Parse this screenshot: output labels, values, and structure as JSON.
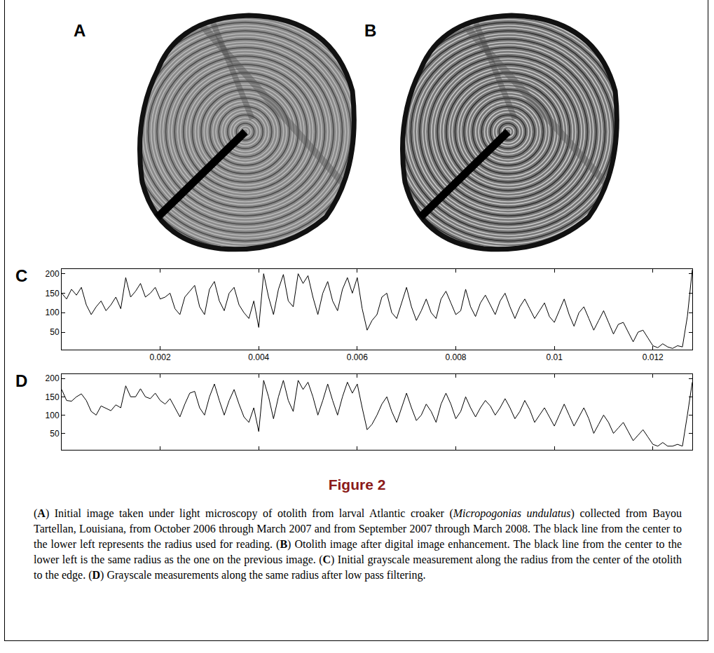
{
  "images": [
    {
      "panel_label": "A"
    },
    {
      "panel_label": "B"
    }
  ],
  "chart_data": [
    {
      "type": "line",
      "panel_label": "C",
      "color": "#000000",
      "grid": false,
      "xlim": [
        0,
        0.0128
      ],
      "xticks": [
        0.002,
        0.004,
        0.006,
        0.008,
        0.01,
        0.012
      ],
      "ylim": [
        5,
        212
      ],
      "yticks": [
        50,
        100,
        150,
        200
      ],
      "x": [
        0,
        0.0001,
        0.0002,
        0.0003,
        0.0004,
        0.0005,
        0.0006,
        0.0007,
        0.0008,
        0.0009,
        0.001,
        0.0011,
        0.0012,
        0.0013,
        0.0014,
        0.0015,
        0.0016,
        0.0017,
        0.0018,
        0.0019,
        0.002,
        0.0021,
        0.0022,
        0.0023,
        0.0024,
        0.0025,
        0.0026,
        0.0027,
        0.0028,
        0.0029,
        0.003,
        0.0031,
        0.0032,
        0.0033,
        0.0034,
        0.0035,
        0.0036,
        0.0037,
        0.0038,
        0.0039,
        0.004,
        0.0041,
        0.0042,
        0.0043,
        0.0044,
        0.0045,
        0.0046,
        0.0047,
        0.0048,
        0.0049,
        0.005,
        0.0051,
        0.0052,
        0.0053,
        0.0054,
        0.0055,
        0.0056,
        0.0057,
        0.0058,
        0.0059,
        0.006,
        0.0061,
        0.0062,
        0.0063,
        0.0064,
        0.0065,
        0.0066,
        0.0067,
        0.0068,
        0.0069,
        0.007,
        0.0071,
        0.0072,
        0.0073,
        0.0074,
        0.0075,
        0.0076,
        0.0077,
        0.0078,
        0.0079,
        0.008,
        0.0081,
        0.0082,
        0.0083,
        0.0084,
        0.0085,
        0.0086,
        0.0087,
        0.0088,
        0.0089,
        0.009,
        0.0091,
        0.0092,
        0.0093,
        0.0094,
        0.0095,
        0.0096,
        0.0097,
        0.0098,
        0.0099,
        0.01,
        0.0101,
        0.0102,
        0.0103,
        0.0104,
        0.0105,
        0.0106,
        0.0107,
        0.0108,
        0.0109,
        0.011,
        0.0111,
        0.0112,
        0.0113,
        0.0114,
        0.0115,
        0.0116,
        0.0117,
        0.0118,
        0.0119,
        0.012,
        0.0121,
        0.0122,
        0.0123,
        0.0124,
        0.0125,
        0.0126,
        0.0127,
        0.0128
      ],
      "values": [
        150,
        135,
        160,
        145,
        165,
        120,
        95,
        115,
        130,
        105,
        120,
        140,
        110,
        190,
        140,
        155,
        175,
        140,
        150,
        165,
        135,
        140,
        150,
        110,
        95,
        140,
        155,
        170,
        115,
        95,
        160,
        180,
        130,
        105,
        150,
        165,
        120,
        100,
        85,
        130,
        62,
        200,
        140,
        95,
        160,
        198,
        130,
        115,
        200,
        175,
        195,
        140,
        95,
        150,
        180,
        130,
        105,
        160,
        190,
        150,
        190,
        110,
        55,
        80,
        95,
        140,
        150,
        100,
        85,
        125,
        165,
        115,
        80,
        105,
        135,
        100,
        85,
        135,
        155,
        125,
        95,
        105,
        160,
        115,
        90,
        125,
        145,
        120,
        95,
        130,
        150,
        115,
        85,
        115,
        135,
        110,
        85,
        105,
        125,
        90,
        75,
        105,
        135,
        95,
        65,
        100,
        115,
        85,
        55,
        80,
        105,
        75,
        45,
        70,
        75,
        50,
        25,
        50,
        55,
        35,
        15,
        10,
        20,
        12,
        8,
        15,
        12,
        90,
        210
      ]
    },
    {
      "type": "line",
      "panel_label": "D",
      "color": "#000000",
      "grid": false,
      "tick_labels": "y",
      "xlim": [
        0,
        0.0128
      ],
      "xticks": [
        0.002,
        0.004,
        0.006,
        0.008,
        0.01,
        0.012
      ],
      "ylim": [
        5,
        212
      ],
      "yticks": [
        50,
        100,
        150,
        200
      ],
      "x": [
        0,
        0.0001,
        0.0002,
        0.0003,
        0.0004,
        0.0005,
        0.0006,
        0.0007,
        0.0008,
        0.0009,
        0.001,
        0.0011,
        0.0012,
        0.0013,
        0.0014,
        0.0015,
        0.0016,
        0.0017,
        0.0018,
        0.0019,
        0.002,
        0.0021,
        0.0022,
        0.0023,
        0.0024,
        0.0025,
        0.0026,
        0.0027,
        0.0028,
        0.0029,
        0.003,
        0.0031,
        0.0032,
        0.0033,
        0.0034,
        0.0035,
        0.0036,
        0.0037,
        0.0038,
        0.0039,
        0.004,
        0.0041,
        0.0042,
        0.0043,
        0.0044,
        0.0045,
        0.0046,
        0.0047,
        0.0048,
        0.0049,
        0.005,
        0.0051,
        0.0052,
        0.0053,
        0.0054,
        0.0055,
        0.0056,
        0.0057,
        0.0058,
        0.0059,
        0.006,
        0.0061,
        0.0062,
        0.0063,
        0.0064,
        0.0065,
        0.0066,
        0.0067,
        0.0068,
        0.0069,
        0.007,
        0.0071,
        0.0072,
        0.0073,
        0.0074,
        0.0075,
        0.0076,
        0.0077,
        0.0078,
        0.0079,
        0.008,
        0.0081,
        0.0082,
        0.0083,
        0.0084,
        0.0085,
        0.0086,
        0.0087,
        0.0088,
        0.0089,
        0.009,
        0.0091,
        0.0092,
        0.0093,
        0.0094,
        0.0095,
        0.0096,
        0.0097,
        0.0098,
        0.0099,
        0.01,
        0.0101,
        0.0102,
        0.0103,
        0.0104,
        0.0105,
        0.0106,
        0.0107,
        0.0108,
        0.0109,
        0.011,
        0.0111,
        0.0112,
        0.0113,
        0.0114,
        0.0115,
        0.0116,
        0.0117,
        0.0118,
        0.0119,
        0.012,
        0.0121,
        0.0122,
        0.0123,
        0.0124,
        0.0125,
        0.0126,
        0.0127,
        0.0128
      ],
      "values": [
        170,
        140,
        138,
        150,
        158,
        140,
        110,
        100,
        125,
        118,
        112,
        128,
        120,
        180,
        150,
        150,
        172,
        150,
        145,
        160,
        140,
        130,
        145,
        120,
        95,
        130,
        160,
        165,
        120,
        100,
        150,
        185,
        140,
        100,
        140,
        170,
        130,
        95,
        80,
        120,
        55,
        195,
        150,
        90,
        150,
        195,
        140,
        110,
        195,
        170,
        190,
        150,
        100,
        140,
        185,
        140,
        100,
        150,
        190,
        160,
        185,
        120,
        60,
        75,
        100,
        130,
        150,
        110,
        80,
        120,
        160,
        120,
        85,
        100,
        130,
        110,
        80,
        130,
        160,
        130,
        90,
        110,
        150,
        120,
        95,
        120,
        140,
        125,
        100,
        120,
        145,
        120,
        90,
        110,
        140,
        115,
        80,
        100,
        120,
        95,
        70,
        100,
        130,
        100,
        70,
        95,
        120,
        90,
        50,
        75,
        100,
        80,
        50,
        65,
        80,
        55,
        30,
        45,
        60,
        40,
        20,
        15,
        25,
        15,
        15,
        20,
        15,
        100,
        190
      ]
    }
  ],
  "figure": {
    "label": "Figure 2",
    "caption": [
      {
        "text": "(",
        "style": "plain"
      },
      {
        "text": "A",
        "style": "bold"
      },
      {
        "text": ") Initial image taken under light microscopy of otolith from larval Atlantic croaker (",
        "style": "plain"
      },
      {
        "text": "Micropogonias undulatus",
        "style": "italic"
      },
      {
        "text": ") collected from Bayou Tartellan, Louisiana, from October 2006 through March 2007 and from September 2007 through March 2008. The black line from the center to the lower left represents the radius used for reading. (",
        "style": "plain"
      },
      {
        "text": "B",
        "style": "bold"
      },
      {
        "text": ") Otolith image after digital image enhancement. The black line from the center to the lower left is the same radius as the one on the previous image. (",
        "style": "plain"
      },
      {
        "text": "C",
        "style": "bold"
      },
      {
        "text": ") Initial grayscale measurement along the radius from the center of the otolith to the edge. (",
        "style": "plain"
      },
      {
        "text": "D",
        "style": "bold"
      },
      {
        "text": ") Grayscale measurements along the same radius after low pass filtering.",
        "style": "plain"
      }
    ]
  }
}
